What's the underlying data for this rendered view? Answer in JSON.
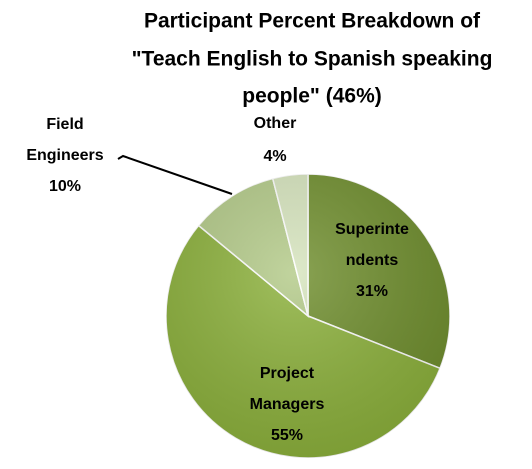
{
  "chart_data": {
    "type": "pie",
    "title": [
      "Participant Percent Breakdown of",
      "\"Teach English to Spanish speaking",
      "people\" (46%)"
    ],
    "categories": [
      [
        "Superinte",
        "ndents"
      ],
      [
        "Project",
        "Managers"
      ],
      [
        "Field",
        "Engineers"
      ],
      [
        "Other"
      ]
    ],
    "values": [
      31,
      55,
      10,
      4
    ],
    "value_labels": [
      "31%",
      "55%",
      "10%",
      "4%"
    ],
    "colors": [
      "#6f8e2d",
      "#8cb13b",
      "#b3ca88",
      "#d6e4bd"
    ]
  }
}
